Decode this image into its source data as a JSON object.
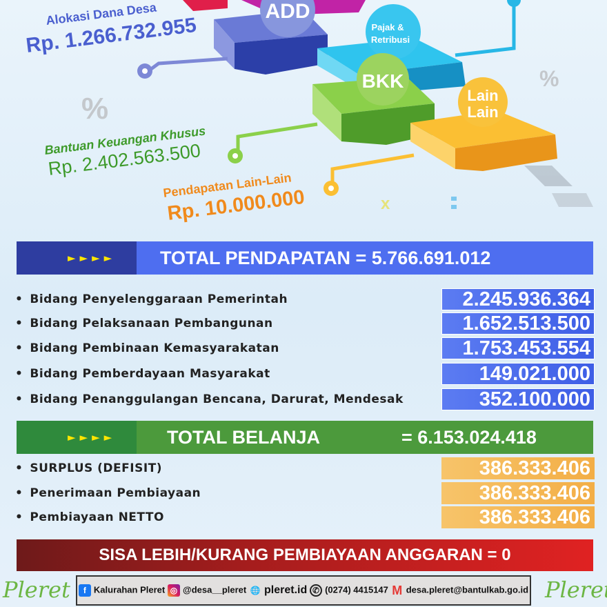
{
  "illustration": {
    "circles": [
      "ADD",
      "Pajak &\nRetribusi",
      "BKK",
      "Lain\nLain"
    ],
    "decor": [
      "%",
      "%",
      "x",
      ":"
    ],
    "colors": {
      "add": "#4a5fcf",
      "pajak": "#27b7e6",
      "bkk": "#7cc33b",
      "lain": "#f6b21d",
      "magenta": "#c123a6",
      "red": "#e01f4a"
    }
  },
  "labels": {
    "add": {
      "title": "Alokasi Dana Desa",
      "amount": "Rp. 1.266.732.955"
    },
    "bkk": {
      "title": "Bantuan Keuangan Khusus",
      "amount": "Rp. 2.402.563.500"
    },
    "lain": {
      "title": "Pendapatan Lain-Lain",
      "amount": "Rp. 10.000.000"
    }
  },
  "pendapatan": {
    "arrows": "►►►►",
    "label": "TOTAL PENDAPATAN = 5.766.691.012"
  },
  "belanja_items": [
    {
      "label": "Bidang Penyelenggaraan Pemerintah",
      "value": "2.245.936.364"
    },
    {
      "label": "Bidang Pelaksanaan Pembangunan",
      "value": "1.652.513.500"
    },
    {
      "label": "Bidang Pembinaan Kemasyarakatan",
      "value": "1.753.453.554"
    },
    {
      "label": "Bidang Pemberdayaan Masyarakat",
      "value": "149.021.000"
    },
    {
      "label": "Bidang Penanggulangan Bencana, Darurat, Mendesak",
      "value": "352.100.000"
    }
  ],
  "belanja": {
    "arrows": "►►►►",
    "label": "TOTAL BELANJA",
    "value": "= 6.153.024.418"
  },
  "pembiayaan_items": [
    {
      "label": "SURPLUS (DEFISIT)",
      "value": "386.333.406"
    },
    {
      "label": "Penerimaan Pembiayaan",
      "value": "386.333.406"
    },
    {
      "label": "Pembiayaan NETTO",
      "value": "386.333.406"
    }
  ],
  "sisa": "SISA LEBIH/KURANG PEMBIAYAAN ANGGARAN = 0",
  "footer": {
    "facebook": "Kalurahan Pleret",
    "instagram": "@desa__pleret",
    "website": "pleret.id",
    "phone": "(0274) 4415147",
    "email": "desa.pleret@bantulkab.go.id",
    "logo": "Pleret"
  }
}
